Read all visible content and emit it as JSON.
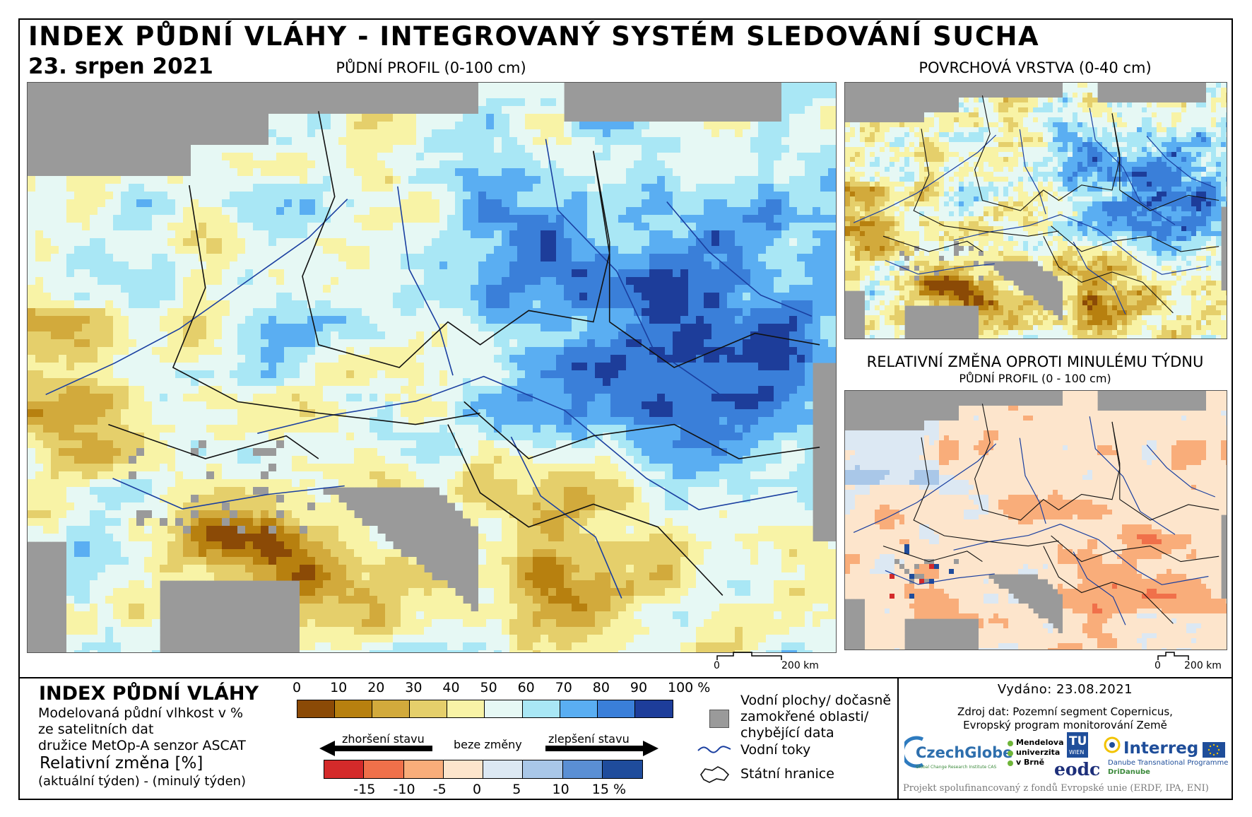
{
  "header": {
    "title": "INDEX PŮDNÍ VLÁHY - INTEGROVANÝ SYSTÉM SLEDOVÁNÍ SUCHA",
    "date": "23. srpen 2021"
  },
  "panels": {
    "main": {
      "title": "PŮDNÍ PROFIL (0-100 cm)",
      "scale_zero": "0",
      "scale_label": "200 km"
    },
    "surface": {
      "title": "POVRCHOVÁ VRSTVA (0-40 cm)"
    },
    "change": {
      "title": "RELATIVNÍ ZMĚNA OPROTI MINULÉMU TÝDNU",
      "subtitle": "PŮDNÍ PROFIL (0 - 100 cm)",
      "scale_zero": "0",
      "scale_label": "200 km"
    }
  },
  "legend": {
    "title": "INDEX PŮDNÍ VLÁHY",
    "lines": [
      "Modelovaná půdní vlhkost v %",
      "ze satelitních dat",
      "družice MetOp-A senzor ASCAT"
    ],
    "rel_title": "Relativní změna [%]",
    "rel_sub": "(aktuální týden) - (minulý týden)",
    "moisture_ticks": [
      "0",
      "10",
      "20",
      "30",
      "40",
      "50",
      "60",
      "70",
      "80",
      "90",
      "100 %"
    ],
    "moisture_colors": [
      "#8b4a06",
      "#b7800f",
      "#d2aa3c",
      "#e5cf6b",
      "#f8f3a6",
      "#e6f8f4",
      "#a9e7f5",
      "#5aaef2",
      "#3a7fd9",
      "#1d3d9a"
    ],
    "worse_label": "zhoršení stavu",
    "nochange_label": "beze změny",
    "better_label": "zlepšení stavu",
    "change_ticks": [
      "-15",
      "-10",
      "-5",
      "0",
      "5",
      "10",
      "15 %"
    ],
    "change_colors": [
      "#d42a2a",
      "#f0704a",
      "#f9ad7a",
      "#fde5cc",
      "#dce8f3",
      "#a9c7e8",
      "#5a8fd4",
      "#1f4c9c"
    ],
    "water_label_lines": [
      "Vodní plochy/ dočasně",
      "zamokřené oblasti/",
      "chybějící data"
    ],
    "rivers_label": "Vodní toky",
    "borders_label": "Státní hranice"
  },
  "colors": {
    "missing": "#9a9a9a",
    "river": "#1a3fa0",
    "border": "#111111"
  },
  "credits": {
    "issued": "Vydáno: 23.08.2021",
    "source_lines": [
      "Zdroj dat: Pozemní segment Copernicus,",
      "Evropský program monitorování Země"
    ],
    "funding": "Projekt spolufinancovaný z fondů Evropské unie (ERDF, IPA, ENI)",
    "logos": {
      "czechglobe": "CzechGlobe",
      "czechglobe_sub": "Global Change Research Institute CAS",
      "mendel": [
        "Mendelova",
        "univerzita",
        "v Brně"
      ],
      "tu": "TU",
      "tu_sub": "WIEN",
      "eodc": "eodc",
      "interreg": "Interreg",
      "interreg_sub1": "Danube Transnational Programme",
      "interreg_sub2": "DriDanube"
    }
  }
}
